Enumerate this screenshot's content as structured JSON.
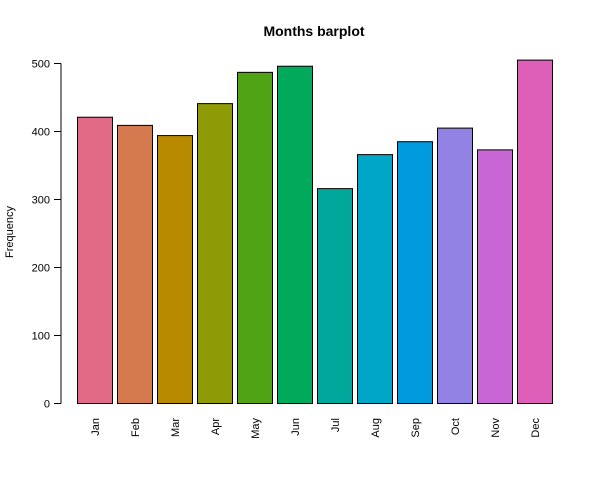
{
  "chart_data": {
    "type": "bar",
    "title": "Months barplot",
    "xlabel": "",
    "ylabel": "Frequency",
    "categories": [
      "Jan",
      "Feb",
      "Mar",
      "Apr",
      "May",
      "Jun",
      "Jul",
      "Aug",
      "Sep",
      "Oct",
      "Nov",
      "Dec"
    ],
    "values": [
      421,
      409,
      394,
      441,
      487,
      496,
      316,
      366,
      385,
      405,
      373,
      505
    ],
    "colors": [
      "#E16A86",
      "#D57A4E",
      "#B88A00",
      "#8E9B06",
      "#50A315",
      "#00AA5A",
      "#00A79B",
      "#00A6C8",
      "#009ADE",
      "#9182E3",
      "#C966D6",
      "#DE5FB8"
    ],
    "ylim": [
      0,
      500
    ],
    "yticks": [
      0,
      100,
      200,
      300,
      400,
      500
    ],
    "grid": false,
    "legend": "none"
  }
}
